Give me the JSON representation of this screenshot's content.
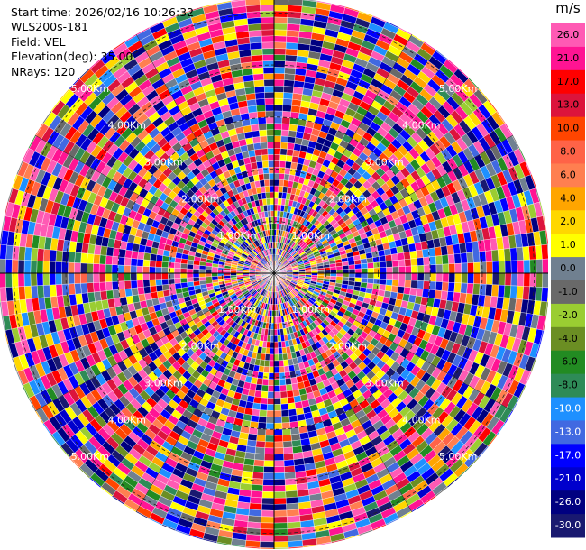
{
  "info": {
    "start_time": "Start time: 2026/02/16 10:26:32",
    "site": "WLS200s-181",
    "field": "Field: VEL",
    "elevation": "Elevation(deg): 35.00",
    "nrays": "NRays: 120"
  },
  "colorbar": {
    "unit": "m/s",
    "ticks": [
      "26.0",
      "21.0",
      "17.0",
      "13.0",
      "10.0",
      "8.0",
      "6.0",
      "4.0",
      "2.0",
      "1.0",
      "0.0",
      "-1.0",
      "-2.0",
      "-4.0",
      "-6.0",
      "-8.0",
      "-10.0",
      "-13.0",
      "-17.0",
      "-21.0",
      "-26.0",
      "-30.0"
    ],
    "colors": [
      "#ff5ab4",
      "#ff1493",
      "#ff0000",
      "#dc143c",
      "#ff4500",
      "#ff6347",
      "#ff7f50",
      "#ffa500",
      "#ffd700",
      "#ffff00",
      "#708090",
      "#696969",
      "#9acd32",
      "#6b8e23",
      "#228b22",
      "#2e8b57",
      "#1e90ff",
      "#4169e1",
      "#0000ff",
      "#0000cd",
      "#000080",
      "#191970"
    ]
  },
  "chart_data": {
    "type": "polar_ppi",
    "field": "VEL",
    "units": "m/s",
    "nrays": 120,
    "elevation_deg": 35.0,
    "range_rings_km": [
      1.0,
      2.0,
      3.0,
      4.0,
      5.0
    ],
    "ring_labels": [
      "1.00Km",
      "2.00Km",
      "3.00Km",
      "4.00Km",
      "5.00Km"
    ],
    "max_range_km": 5.3,
    "vmin": -30.0,
    "vmax": 30.0,
    "grid": true
  }
}
